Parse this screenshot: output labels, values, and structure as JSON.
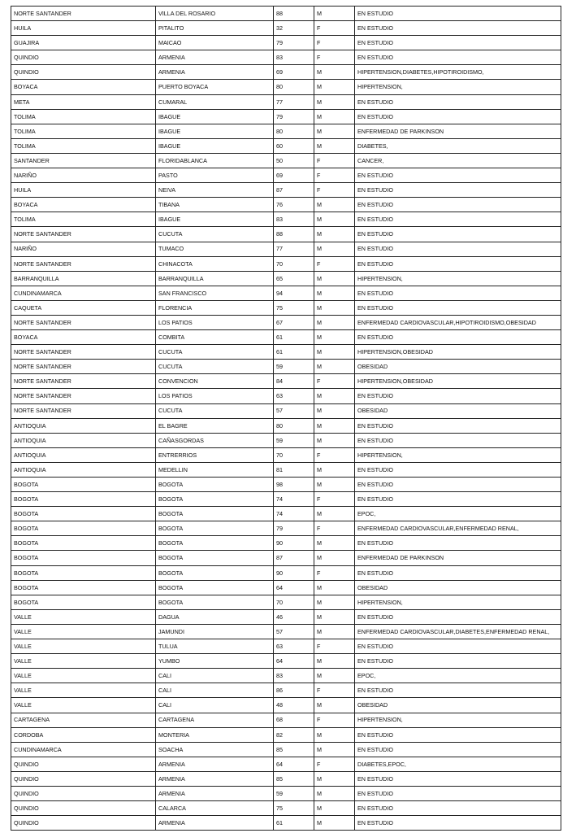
{
  "table": {
    "rows": [
      [
        "NORTE SANTANDER",
        "VILLA DEL ROSARIO",
        88,
        "M",
        "EN ESTUDIO"
      ],
      [
        "HUILA",
        "PITALITO",
        32,
        "F",
        "EN ESTUDIO"
      ],
      [
        "GUAJIRA",
        "MAICAO",
        79,
        "F",
        "EN ESTUDIO"
      ],
      [
        "QUINDIO",
        "ARMENIA",
        83,
        "F",
        "EN ESTUDIO"
      ],
      [
        "QUINDIO",
        "ARMENIA",
        69,
        "M",
        "HIPERTENSION,DIABETES,HIPOTIROIDISMO,"
      ],
      [
        "BOYACA",
        "PUERTO BOYACA",
        80,
        "M",
        "HIPERTENSION,"
      ],
      [
        "META",
        "CUMARAL",
        77,
        "M",
        "EN ESTUDIO"
      ],
      [
        "TOLIMA",
        "IBAGUE",
        79,
        "M",
        "EN ESTUDIO"
      ],
      [
        "TOLIMA",
        "IBAGUE",
        80,
        "M",
        "ENFERMEDAD DE PARKINSON"
      ],
      [
        "TOLIMA",
        "IBAGUE",
        60,
        "M",
        "DIABETES,"
      ],
      [
        "SANTANDER",
        "FLORIDABLANCA",
        50,
        "F",
        "CANCER,"
      ],
      [
        "NARIÑO",
        "PASTO",
        69,
        "F",
        "EN ESTUDIO"
      ],
      [
        "HUILA",
        "NEIVA",
        87,
        "F",
        "EN ESTUDIO"
      ],
      [
        "BOYACA",
        "TIBANA",
        76,
        "M",
        "EN ESTUDIO"
      ],
      [
        "TOLIMA",
        "IBAGUE",
        83,
        "M",
        "EN ESTUDIO"
      ],
      [
        "NORTE SANTANDER",
        "CUCUTA",
        88,
        "M",
        "EN ESTUDIO"
      ],
      [
        "NARIÑO",
        "TUMACO",
        77,
        "M",
        "EN ESTUDIO"
      ],
      [
        "NORTE SANTANDER",
        "CHINACOTA",
        70,
        "F",
        "EN ESTUDIO"
      ],
      [
        "BARRANQUILLA",
        "BARRANQUILLA",
        65,
        "M",
        "HIPERTENSION,"
      ],
      [
        "CUNDINAMARCA",
        "SAN FRANCISCO",
        94,
        "M",
        "EN ESTUDIO"
      ],
      [
        "CAQUETA",
        "FLORENCIA",
        75,
        "M",
        "EN ESTUDIO"
      ],
      [
        "NORTE SANTANDER",
        "LOS PATIOS",
        67,
        "M",
        "ENFERMEDAD CARDIOVASCULAR,HIPOTIROIDISMO,OBESIDAD"
      ],
      [
        "BOYACA",
        "COMBITA",
        61,
        "M",
        "EN ESTUDIO"
      ],
      [
        "NORTE SANTANDER",
        "CUCUTA",
        61,
        "M",
        "HIPERTENSION,OBESIDAD"
      ],
      [
        "NORTE SANTANDER",
        "CUCUTA",
        59,
        "M",
        "OBESIDAD"
      ],
      [
        "NORTE SANTANDER",
        "CONVENCION",
        84,
        "F",
        "HIPERTENSION,OBESIDAD"
      ],
      [
        "NORTE SANTANDER",
        "LOS PATIOS",
        63,
        "M",
        "EN ESTUDIO"
      ],
      [
        "NORTE SANTANDER",
        "CUCUTA",
        57,
        "M",
        "OBESIDAD"
      ],
      [
        "ANTIOQUIA",
        "EL BAGRE",
        80,
        "M",
        "EN ESTUDIO"
      ],
      [
        "ANTIOQUIA",
        "CAÑASGORDAS",
        59,
        "M",
        "EN ESTUDIO"
      ],
      [
        "ANTIOQUIA",
        "ENTRERRIOS",
        70,
        "F",
        "HIPERTENSION,"
      ],
      [
        "ANTIOQUIA",
        "MEDELLIN",
        81,
        "M",
        "EN ESTUDIO"
      ],
      [
        "BOGOTA",
        "BOGOTA",
        98,
        "M",
        "EN ESTUDIO"
      ],
      [
        "BOGOTA",
        "BOGOTA",
        74,
        "F",
        "EN ESTUDIO"
      ],
      [
        "BOGOTA",
        "BOGOTA",
        74,
        "M",
        "EPOC,"
      ],
      [
        "BOGOTA",
        "BOGOTA",
        79,
        "F",
        "ENFERMEDAD CARDIOVASCULAR,ENFERMEDAD RENAL,"
      ],
      [
        "BOGOTA",
        "BOGOTA",
        90,
        "M",
        "EN ESTUDIO"
      ],
      [
        "BOGOTA",
        "BOGOTA",
        87,
        "M",
        "ENFERMEDAD DE PARKINSON"
      ],
      [
        "BOGOTA",
        "BOGOTA",
        90,
        "F",
        "EN ESTUDIO"
      ],
      [
        "BOGOTA",
        "BOGOTA",
        64,
        "M",
        "OBESIDAD"
      ],
      [
        "BOGOTA",
        "BOGOTA",
        70,
        "M",
        "HIPERTENSION,"
      ],
      [
        "VALLE",
        "DAGUA",
        46,
        "M",
        "EN ESTUDIO"
      ],
      [
        "VALLE",
        "JAMUNDI",
        57,
        "M",
        "ENFERMEDAD CARDIOVASCULAR,DIABETES,ENFERMEDAD RENAL,"
      ],
      [
        "VALLE",
        "TULUA",
        63,
        "F",
        "EN ESTUDIO"
      ],
      [
        "VALLE",
        "YUMBO",
        64,
        "M",
        "EN ESTUDIO"
      ],
      [
        "VALLE",
        "CALI",
        83,
        "M",
        "EPOC,"
      ],
      [
        "VALLE",
        "CALI",
        86,
        "F",
        "EN ESTUDIO"
      ],
      [
        "VALLE",
        "CALI",
        48,
        "M",
        "OBESIDAD"
      ],
      [
        "CARTAGENA",
        "CARTAGENA",
        68,
        "F",
        "HIPERTENSION,"
      ],
      [
        "CORDOBA",
        "MONTERIA",
        82,
        "M",
        "EN ESTUDIO"
      ],
      [
        "CUNDINAMARCA",
        "SOACHA",
        85,
        "M",
        "EN ESTUDIO"
      ],
      [
        "QUINDIO",
        "ARMENIA",
        64,
        "F",
        "DIABETES,EPOC,"
      ],
      [
        "QUINDIO",
        "ARMENIA",
        85,
        "M",
        "EN ESTUDIO"
      ],
      [
        "QUINDIO",
        "ARMENIA",
        59,
        "M",
        "EN ESTUDIO"
      ],
      [
        "QUINDIO",
        "CALARCA",
        75,
        "M",
        "EN ESTUDIO"
      ],
      [
        "QUINDIO",
        "ARMENIA",
        61,
        "M",
        "EN ESTUDIO"
      ]
    ]
  }
}
